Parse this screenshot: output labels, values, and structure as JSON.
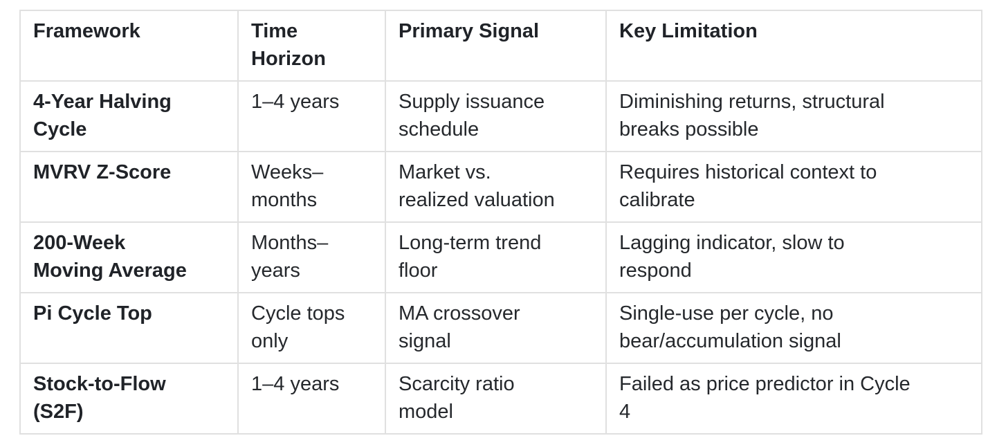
{
  "table": {
    "columns": {
      "framework": "Framework",
      "time_horizon": "Time\nHorizon",
      "primary_signal": "Primary Signal",
      "key_limitation": "Key Limitation"
    },
    "rows": [
      {
        "framework": "4-Year Halving\nCycle",
        "time_horizon": "1–4 years",
        "primary_signal": "Supply issuance\nschedule",
        "key_limitation": "Diminishing returns, structural\nbreaks possible"
      },
      {
        "framework": "MVRV Z-Score",
        "time_horizon": "Weeks–\nmonths",
        "primary_signal": "Market vs.\nrealized valuation",
        "key_limitation": "Requires historical context to\ncalibrate"
      },
      {
        "framework": "200-Week\nMoving Average",
        "time_horizon": "Months–\nyears",
        "primary_signal": "Long-term trend\nfloor",
        "key_limitation": "Lagging indicator, slow to\nrespond"
      },
      {
        "framework": "Pi Cycle Top",
        "time_horizon": "Cycle tops\nonly",
        "primary_signal": "MA crossover\nsignal",
        "key_limitation": "Single-use per cycle, no\nbear/accumulation signal"
      },
      {
        "framework": "Stock-to-Flow\n(S2F)",
        "time_horizon": "1–4 years",
        "primary_signal": "Scarcity ratio\nmodel",
        "key_limitation": "Failed as price predictor in Cycle\n4"
      }
    ],
    "colors": {
      "border": "#e0e0e0",
      "text": "#25282c",
      "background": "#ffffff"
    }
  }
}
